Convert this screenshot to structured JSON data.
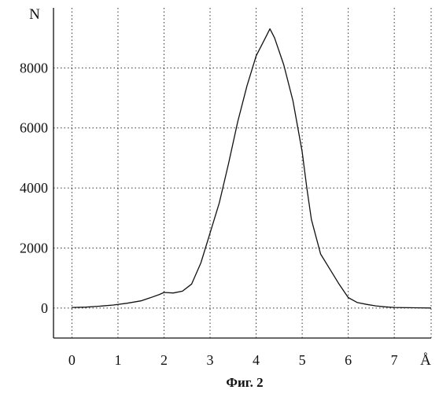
{
  "chart_data": {
    "type": "line",
    "title": "",
    "caption": "Фиг. 2",
    "xlabel": "Å",
    "ylabel": "N",
    "xlim": [
      -0.4,
      7.8
    ],
    "ylim": [
      -1000,
      10000
    ],
    "x_ticks": [
      0,
      1,
      2,
      3,
      4,
      5,
      6,
      7
    ],
    "y_ticks": [
      0,
      2000,
      4000,
      6000,
      8000
    ],
    "x_tick_labels": [
      "0",
      "1",
      "2",
      "3",
      "4",
      "5",
      "6",
      "7"
    ],
    "y_tick_labels": [
      "0",
      "2000",
      "4000",
      "6000",
      "8000"
    ],
    "grid": true,
    "legend": false,
    "series": [
      {
        "x": [
          0.0,
          0.3,
          0.6,
          0.9,
          1.2,
          1.5,
          1.7,
          1.9,
          2.0,
          2.2,
          2.4,
          2.6,
          2.8,
          3.0,
          3.2,
          3.4,
          3.6,
          3.8,
          4.0,
          4.2,
          4.3,
          4.4,
          4.6,
          4.8,
          5.0,
          5.1,
          5.2,
          5.4,
          5.6,
          5.8,
          6.0,
          6.2,
          6.4,
          6.6,
          6.8,
          7.0,
          7.3,
          7.6,
          7.8
        ],
        "y": [
          20,
          30,
          60,
          100,
          160,
          240,
          340,
          450,
          520,
          500,
          560,
          800,
          1500,
          2500,
          3500,
          4800,
          6200,
          7400,
          8400,
          9000,
          9300,
          9000,
          8100,
          6900,
          5200,
          4000,
          2950,
          1800,
          1300,
          800,
          350,
          180,
          120,
          70,
          40,
          20,
          10,
          5,
          0
        ]
      }
    ]
  }
}
